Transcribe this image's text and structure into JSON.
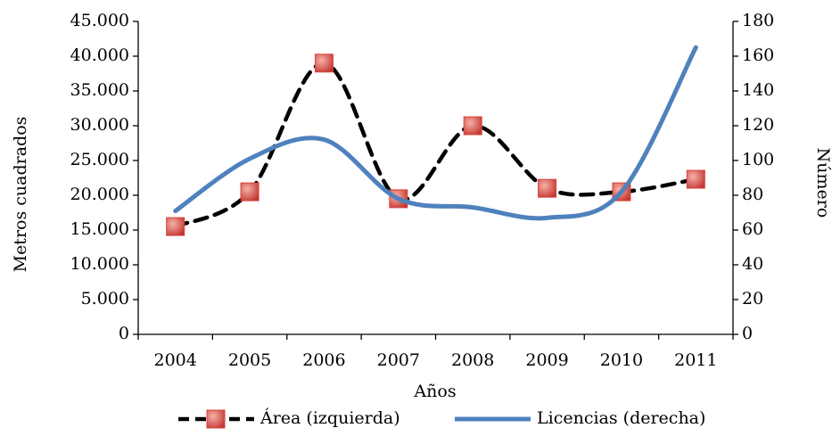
{
  "chart_data": {
    "type": "line",
    "x_label": "Años",
    "y_label": "Metros cuadrados",
    "y2_label": "Número",
    "categories": [
      "2004",
      "2005",
      "2006",
      "2007",
      "2008",
      "2009",
      "2010",
      "2011"
    ],
    "series": [
      {
        "name": "Área (izquierda)",
        "color": "#000000",
        "dash": true,
        "marker": "square",
        "marker_color": "#d9423c",
        "smooth": true,
        "values": [
          15500,
          20500,
          39000,
          19500,
          30000,
          21000,
          20500,
          22300
        ]
      },
      {
        "name": "Licencias (derecha)",
        "color": "#4f81bd",
        "axis": "y2",
        "smooth": true,
        "values": [
          71,
          101,
          112,
          78,
          73,
          67,
          82,
          165
        ]
      }
    ],
    "ylim": [
      0,
      45000
    ],
    "yticks": [
      {
        "value": 0,
        "label": "0"
      },
      {
        "value": 5000,
        "label": "5.000"
      },
      {
        "value": 10000,
        "label": "10.000"
      },
      {
        "value": 15000,
        "label": "15.000"
      },
      {
        "value": 20000,
        "label": "20.000"
      },
      {
        "value": 25000,
        "label": "25.000"
      },
      {
        "value": 30000,
        "label": "30.000"
      },
      {
        "value": 35000,
        "label": "35.000"
      },
      {
        "value": 40000,
        "label": "40.000"
      },
      {
        "value": 45000,
        "label": "45.000"
      }
    ],
    "y2lim": [
      0,
      180
    ],
    "y2ticks": [
      0,
      20,
      40,
      60,
      80,
      100,
      120,
      140,
      160,
      180
    ],
    "grid": false,
    "legend": "bottom"
  }
}
